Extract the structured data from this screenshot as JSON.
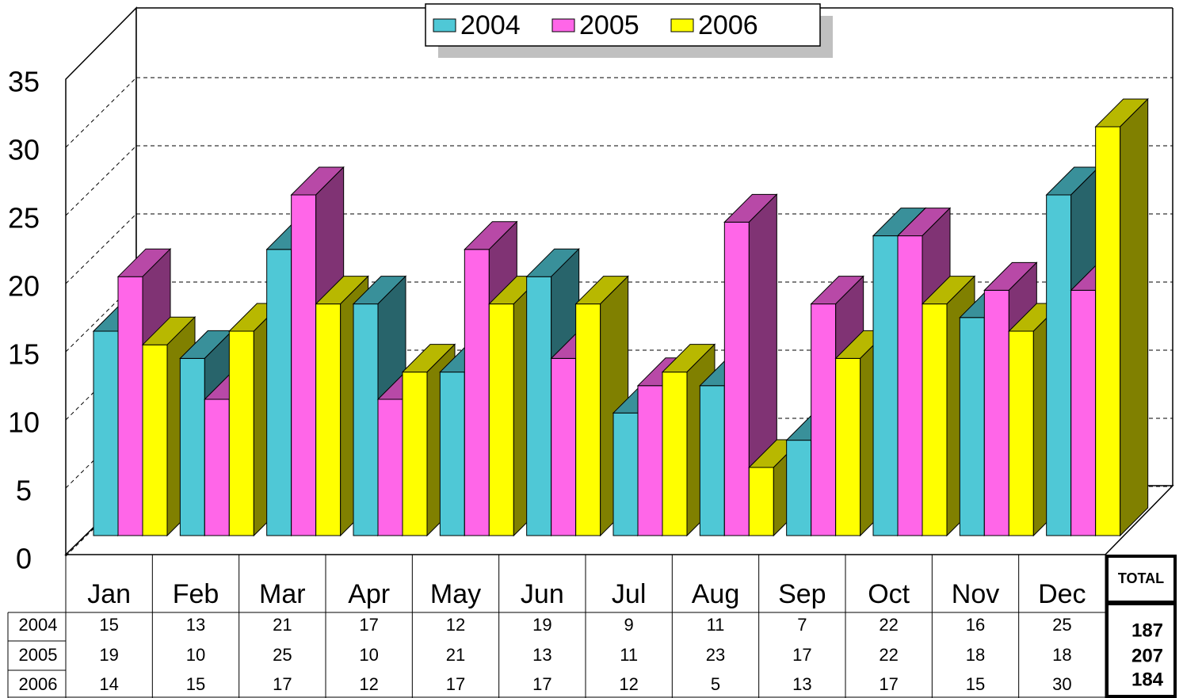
{
  "chart_data": {
    "type": "bar",
    "categories": [
      "Jan",
      "Feb",
      "Mar",
      "Apr",
      "May",
      "Jun",
      "Jul",
      "Aug",
      "Sep",
      "Oct",
      "Nov",
      "Dec"
    ],
    "series": [
      {
        "name": "2004",
        "color": "#4fc8d6",
        "values": [
          15,
          13,
          21,
          17,
          12,
          19,
          9,
          11,
          7,
          22,
          16,
          25
        ]
      },
      {
        "name": "2005",
        "color": "#ff66e8",
        "values": [
          19,
          10,
          25,
          10,
          21,
          13,
          11,
          23,
          17,
          22,
          18,
          18
        ]
      },
      {
        "name": "2006",
        "color": "#ffff00",
        "values": [
          14,
          15,
          17,
          12,
          17,
          17,
          12,
          5,
          13,
          17,
          15,
          30
        ]
      }
    ],
    "ylim": [
      0,
      35
    ],
    "yticks": [
      0,
      5,
      10,
      15,
      20,
      25,
      30,
      35
    ],
    "grid": true,
    "legend": "top",
    "total_header": "TOTAL",
    "totals": [
      187,
      207,
      184
    ]
  }
}
